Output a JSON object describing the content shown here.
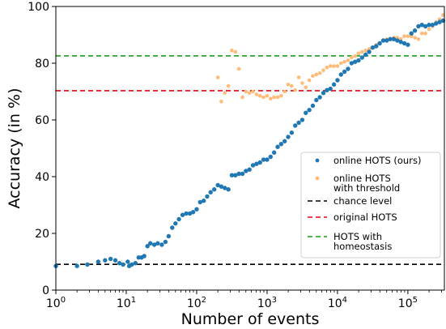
{
  "chart_data": {
    "type": "scatter",
    "title": "",
    "xlabel": "Number of events",
    "ylabel": "Accuracy (in %)",
    "xscale": "log",
    "xlim": [
      1,
      330000
    ],
    "ylim": [
      0,
      100
    ],
    "xticks": [
      1,
      10,
      100,
      1000,
      10000,
      100000
    ],
    "xtick_labels": [
      [
        "10",
        "0"
      ],
      [
        "10",
        "1"
      ],
      [
        "10",
        "2"
      ],
      [
        "10",
        "3"
      ],
      [
        "10",
        "4"
      ],
      [
        "10",
        "5"
      ]
    ],
    "yticks": [
      0,
      20,
      40,
      60,
      80,
      100
    ],
    "ytick_labels": [
      "0",
      "20",
      "40",
      "60",
      "80",
      "100"
    ],
    "legend": {
      "position": "lower-right",
      "entries": [
        {
          "label_lines": [
            "online HOTS (ours)"
          ],
          "marker": "dot",
          "color": "#1f77b4"
        },
        {
          "label_lines": [
            "online HOTS",
            "with threshold"
          ],
          "marker": "dot",
          "color": "#ffbb78"
        },
        {
          "label_lines": [
            "chance level"
          ],
          "marker": "dash",
          "color": "#000000"
        },
        {
          "label_lines": [
            "original HOTS"
          ],
          "marker": "dash",
          "color": "#e8000b"
        },
        {
          "label_lines": [
            "HOTS with",
            "homeostasis"
          ],
          "marker": "dash",
          "color": "#1a9e1a"
        }
      ]
    },
    "series": [
      {
        "name": "online HOTS (ours)",
        "kind": "scatter",
        "color": "#1f77b4",
        "x": [
          1,
          2,
          2.8,
          4,
          5,
          6,
          7,
          8,
          9,
          10.5,
          11,
          12,
          13.5,
          15,
          16.5,
          18,
          20,
          22,
          25,
          28,
          32,
          36,
          40,
          45,
          50,
          56,
          63,
          71,
          80,
          89,
          100,
          112,
          126,
          141,
          158,
          178,
          200,
          224,
          251,
          282,
          316,
          355,
          398,
          447,
          501,
          562,
          631,
          708,
          794,
          891,
          1000,
          1122,
          1259,
          1413,
          1585,
          1778,
          1995,
          2239,
          2512,
          2818,
          3162,
          3548,
          3981,
          4467,
          5012,
          5623,
          6310,
          7079,
          7943,
          8913,
          10000,
          11220,
          12589,
          14125,
          15849,
          17783,
          19953,
          22387,
          25119,
          28184,
          31623,
          35481,
          39811,
          44668,
          50119,
          56234,
          63096,
          70795,
          79433,
          89125,
          100000,
          112202,
          125893,
          141254,
          158489,
          177828,
          199526,
          223872,
          251189,
          281838,
          316228
        ],
        "y": [
          8.5,
          8.5,
          9,
          10,
          10.5,
          11,
          10.5,
          9.5,
          9,
          10,
          8.5,
          9,
          9.5,
          11.5,
          11.5,
          12,
          15.5,
          16.5,
          16,
          16.5,
          16,
          17,
          19,
          22,
          23.5,
          25,
          26.5,
          27,
          27,
          27.5,
          28.5,
          31,
          31.5,
          33,
          34.5,
          35.5,
          37,
          36.5,
          36,
          35.5,
          40.5,
          40.5,
          41,
          41,
          42,
          42.5,
          44,
          44.5,
          45,
          46,
          46,
          47,
          48.5,
          50.5,
          51.5,
          52.5,
          54,
          55.5,
          58,
          59,
          60,
          62.5,
          63.5,
          65,
          67,
          68,
          69.5,
          70.5,
          71,
          72.5,
          74,
          76,
          77,
          78,
          80,
          80.5,
          81,
          82,
          83,
          84,
          85.5,
          86,
          87,
          88,
          88,
          88.5,
          88.5,
          88,
          87.5,
          87,
          86.5,
          90.5,
          91.5,
          93,
          93.5,
          93,
          93.5,
          93.5,
          94,
          94.5,
          95
        ]
      },
      {
        "name": "online HOTS with threshold",
        "kind": "scatter",
        "color": "#ffbb78",
        "x": [
          200,
          224,
          251,
          282,
          316,
          355,
          398,
          447,
          501,
          562,
          631,
          708,
          794,
          891,
          1000,
          1122,
          1259,
          1413,
          1585,
          1778,
          1995,
          2239,
          2512,
          2818,
          3162,
          3548,
          3981,
          4467,
          5012,
          5623,
          6310,
          7079,
          7943,
          8913,
          10000,
          11220,
          12589,
          14125,
          15849,
          17783,
          19953,
          22387,
          25119,
          28184,
          31623,
          35481,
          39811,
          44668,
          50119,
          56234,
          63096,
          70795,
          79433,
          89125,
          100000,
          112202,
          125893,
          141254,
          158489,
          177828,
          199526,
          223872,
          251189,
          281838,
          316228
        ],
        "y": [
          75,
          66.5,
          69.5,
          72,
          84.5,
          84,
          78,
          68,
          70,
          69.5,
          70,
          69,
          68.5,
          68,
          68.5,
          67.5,
          68,
          68,
          68.5,
          70,
          72.5,
          72,
          70.5,
          75,
          73,
          71.5,
          74,
          75.5,
          76,
          76.5,
          77.5,
          78.5,
          79,
          79,
          79,
          80,
          80.5,
          81,
          82,
          82.5,
          83.5,
          84,
          84.5,
          85,
          85.5,
          86.5,
          87,
          88,
          88.5,
          88.5,
          89,
          89,
          88.5,
          89.5,
          89.5,
          89.5,
          89,
          88.5,
          90.5,
          90.5,
          92,
          93,
          94.5,
          95.5,
          97
        ]
      },
      {
        "name": "chance level",
        "kind": "hline",
        "color": "#000000",
        "y": 9.1
      },
      {
        "name": "original HOTS",
        "kind": "hline",
        "color": "#e8000b",
        "y": 70.3
      },
      {
        "name": "HOTS with homeostasis",
        "kind": "hline",
        "color": "#1a9e1a",
        "y": 82.6
      }
    ]
  }
}
